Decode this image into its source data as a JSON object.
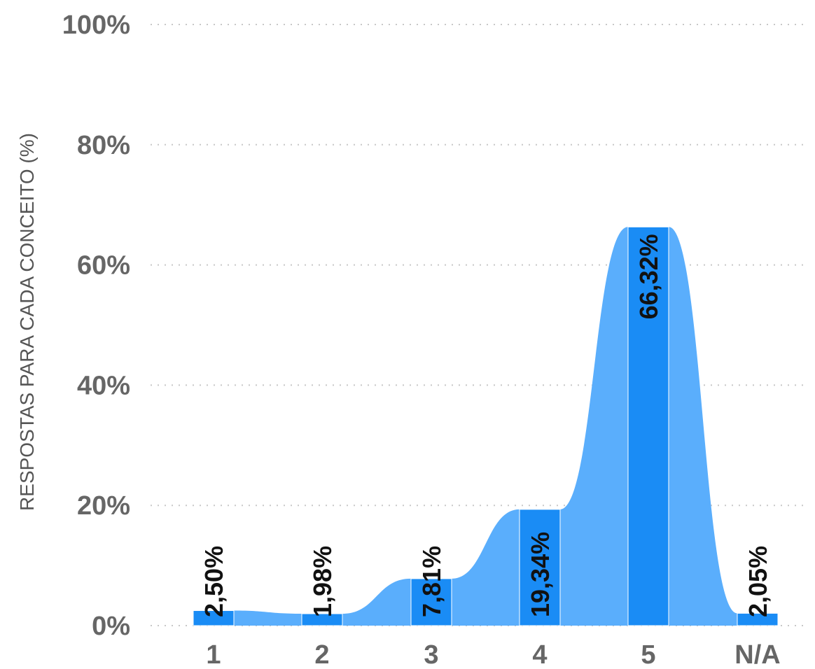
{
  "chart_data": {
    "type": "area",
    "categories": [
      "1",
      "2",
      "3",
      "4",
      "5",
      "N/A"
    ],
    "values": [
      2.5,
      1.98,
      7.81,
      19.34,
      66.32,
      2.05
    ],
    "value_labels": [
      "2,50%",
      "1,98%",
      "7,81%",
      "19,34%",
      "66,32%",
      "2,05%"
    ],
    "ylabel": "RESPOSTAS PARA CADA CONCEITO (%)",
    "yticks": [
      "0%",
      "20%",
      "40%",
      "60%",
      "80%",
      "100%"
    ],
    "ylim": [
      0,
      100
    ],
    "grid": true,
    "colors": {
      "area": "#5aaefc",
      "bar": "#1a8cf5",
      "label": "#111111",
      "tick": "#666666",
      "grid": "#c8c8c8"
    }
  }
}
